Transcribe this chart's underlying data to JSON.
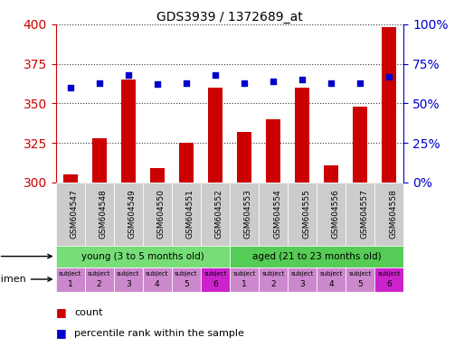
{
  "title": "GDS3939 / 1372689_at",
  "samples": [
    "GSM604547",
    "GSM604548",
    "GSM604549",
    "GSM604550",
    "GSM604551",
    "GSM604552",
    "GSM604553",
    "GSM604554",
    "GSM604555",
    "GSM604556",
    "GSM604557",
    "GSM604558"
  ],
  "counts": [
    305,
    328,
    365,
    309,
    325,
    360,
    332,
    340,
    360,
    311,
    348,
    398
  ],
  "percentile_ranks": [
    60,
    63,
    68,
    62,
    63,
    68,
    63,
    64,
    65,
    63,
    63,
    67
  ],
  "ylim_left": [
    300,
    400
  ],
  "ylim_right": [
    0,
    100
  ],
  "yticks_left": [
    300,
    325,
    350,
    375,
    400
  ],
  "yticks_right": [
    0,
    25,
    50,
    75,
    100
  ],
  "bar_color": "#cc0000",
  "dot_color": "#0000cc",
  "bar_baseline": 300,
  "age_groups": [
    {
      "label": "young (3 to 5 months old)",
      "start": 0,
      "end": 6,
      "color": "#77dd77"
    },
    {
      "label": "aged (21 to 23 months old)",
      "start": 6,
      "end": 12,
      "color": "#55cc55"
    }
  ],
  "specimen_colors_light": "#cc88cc",
  "specimen_colors_dark": "#cc22cc",
  "specimen_dark_indices": [
    5,
    11
  ],
  "specimen_labels_top": "subject",
  "specimen_labels_nums": [
    "1",
    "2",
    "3",
    "4",
    "5",
    "6",
    "1",
    "2",
    "3",
    "4",
    "5",
    "6"
  ],
  "grid_style": "dotted",
  "grid_color": "#333333",
  "left_axis_color": "#cc0000",
  "right_axis_color": "#0000cc",
  "xlabel_bg_color": "#cccccc",
  "age_label_fontsize": 8,
  "specimen_fontsize": 6
}
